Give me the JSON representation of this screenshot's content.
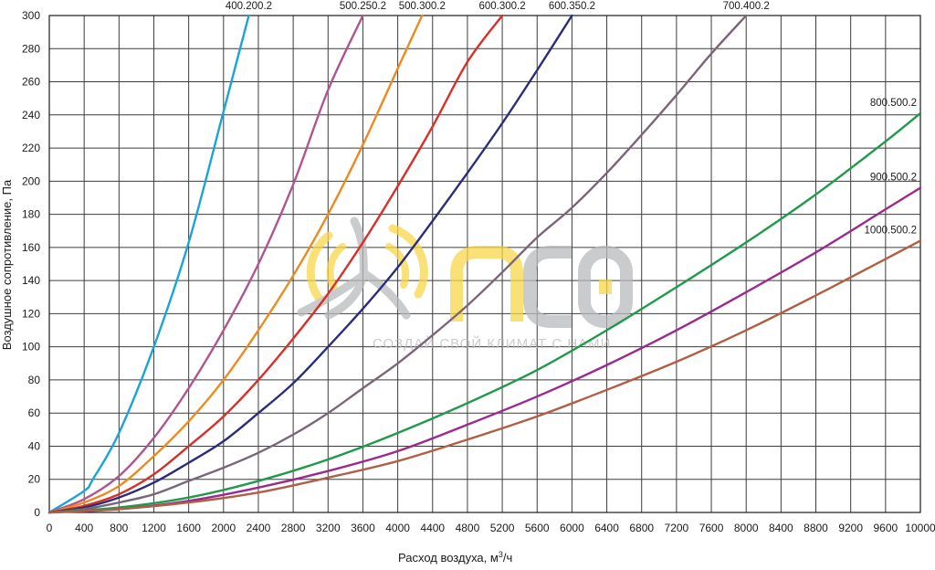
{
  "chart_data": {
    "type": "line",
    "xlabel": "Расход воздуха, м",
    "xlabel_sup": "3",
    "xlabel_tail": "/ч",
    "ylabel": "Воздушное сопротивление, Па",
    "xlim": [
      0,
      10000
    ],
    "ylim": [
      0,
      300
    ],
    "x_ticks": [
      "0",
      "400",
      "800",
      "1200",
      "1600",
      "2000",
      "2400",
      "2800",
      "3200",
      "3600",
      "4000",
      "4400",
      "4800",
      "5200",
      "5600",
      "6000",
      "6400",
      "6800",
      "7200",
      "7600",
      "8000",
      "8400",
      "8800",
      "9200",
      "9600",
      "10000"
    ],
    "y_ticks": [
      "0",
      "20",
      "40",
      "60",
      "80",
      "100",
      "120",
      "140",
      "160",
      "180",
      "200",
      "220",
      "240",
      "260",
      "280",
      "300"
    ],
    "grid": true,
    "series": [
      {
        "name": "400.200.2",
        "color": "#1aa3d6",
        "x": [
          0,
          400,
          500,
          800,
          1200,
          1600,
          2000,
          2290
        ],
        "y": [
          0,
          13,
          20,
          48,
          100,
          163,
          242,
          300
        ]
      },
      {
        "name": "500.250.2",
        "color": "#b0548f",
        "x": [
          0,
          400,
          800,
          1200,
          1600,
          2000,
          2400,
          2800,
          3200,
          3600
        ],
        "y": [
          0,
          8,
          22,
          45,
          75,
          110,
          150,
          198,
          255,
          300
        ]
      },
      {
        "name": "500.300.2",
        "color": "#ec8a1e",
        "x": [
          0,
          400,
          800,
          1200,
          1600,
          2000,
          2400,
          2800,
          3200,
          3600,
          4000,
          4280
        ],
        "y": [
          0,
          6,
          16,
          34,
          55,
          80,
          110,
          143,
          180,
          222,
          268,
          300
        ]
      },
      {
        "name": "600.300.2",
        "color": "#d92f2a",
        "x": [
          0,
          400,
          800,
          1200,
          1600,
          2000,
          2400,
          2800,
          3200,
          3600,
          4000,
          4400,
          4800,
          5200,
          5520
        ],
        "y": [
          0,
          4,
          11,
          23,
          40,
          58,
          80,
          105,
          132,
          163,
          197,
          233,
          272,
          300,
          300
        ]
      },
      {
        "name": "600.350.2",
        "color": "#2b2c7c",
        "x": [
          0,
          400,
          800,
          1200,
          1600,
          2000,
          2400,
          2800,
          3200,
          3600,
          4000,
          4400,
          4800,
          5200,
          5600,
          6000
        ],
        "y": [
          0,
          3,
          9,
          18,
          30,
          43,
          60,
          78,
          100,
          123,
          148,
          176,
          205,
          235,
          267,
          300
        ]
      },
      {
        "name": "700.400.2",
        "color": "#7a6678",
        "x": [
          0,
          400,
          800,
          1200,
          1600,
          2000,
          2400,
          2800,
          3200,
          3600,
          4000,
          4400,
          4800,
          5200,
          5600,
          6000,
          6400,
          6800,
          7200,
          7600,
          8000
        ],
        "y": [
          0,
          2,
          6,
          11,
          19,
          27,
          36,
          47,
          60,
          75,
          90,
          107,
          125,
          145,
          166,
          184,
          205,
          228,
          252,
          277,
          300
        ]
      },
      {
        "name": "800.500.2",
        "color": "#1f9a4a",
        "x": [
          0,
          800,
          1600,
          2400,
          3200,
          4000,
          4800,
          5600,
          6400,
          7200,
          8000,
          8800,
          9600,
          10000
        ],
        "y": [
          0,
          3,
          9,
          19,
          32,
          48,
          66,
          86,
          110,
          136,
          163,
          192,
          224,
          241
        ]
      },
      {
        "name": "900.500.2",
        "color": "#9b2a8e",
        "x": [
          0,
          800,
          1600,
          2400,
          3200,
          4000,
          4800,
          5600,
          6400,
          7200,
          8000,
          8800,
          9600,
          10000
        ],
        "y": [
          0,
          2,
          7,
          15,
          25,
          37,
          53,
          70,
          89,
          110,
          133,
          157,
          183,
          196
        ]
      },
      {
        "name": "1000.500.2",
        "color": "#b05e44",
        "x": [
          0,
          800,
          1600,
          2400,
          3200,
          4000,
          4800,
          5600,
          6400,
          7200,
          8000,
          8800,
          9600,
          10000
        ],
        "y": [
          0,
          2,
          6,
          12,
          21,
          31,
          44,
          58,
          74,
          91,
          110,
          131,
          153,
          164
        ]
      }
    ]
  },
  "watermark": {
    "brand": "ПСО",
    "slogan": "СОЗДАЙ СВОЙ КЛИМАТ С НАМИ",
    "color_yellow": "#f7d64a",
    "color_gray": "#b9babd"
  },
  "colors": {
    "grid": "#3c3c3c",
    "axis": "#1a1a1a",
    "background": "#ffffff"
  }
}
